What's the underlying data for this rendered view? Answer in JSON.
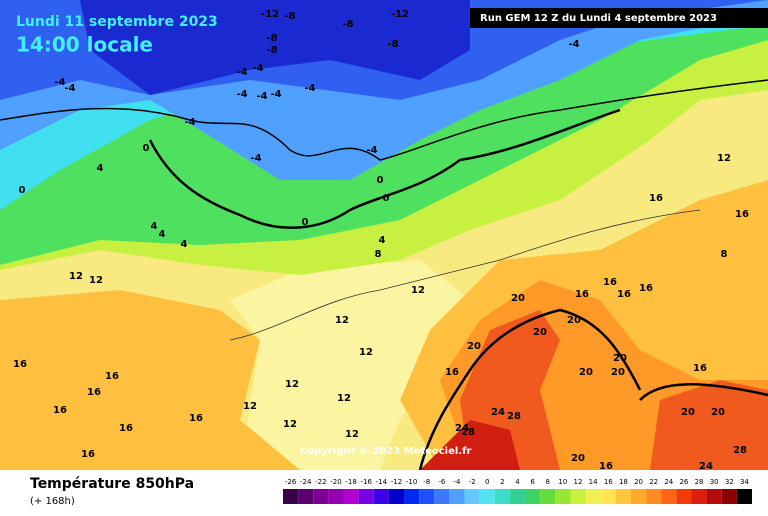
{
  "header": {
    "date": "Lundi 11 septembre 2023",
    "time": "14:00 locale",
    "run": "Run GEM 12 Z du Lundi 4 septembre 2023"
  },
  "footer": {
    "title": "Température 850hPa",
    "lead": "(+ 168h)",
    "copyright": "Copyright © 2023 Meteociel.fr"
  },
  "map": {
    "contour_labels": [
      "-12",
      "-8",
      "-12",
      "-8",
      "-8",
      "-8",
      "-8",
      "-4",
      "-4",
      "-4",
      "-4",
      "-4",
      "-4",
      "-4",
      "-4",
      "-4",
      "-4",
      "-4",
      "-4",
      "0",
      "4",
      "0",
      "0",
      "0",
      "0",
      "4",
      "4",
      "4",
      "4",
      "8",
      "12",
      "12",
      "12",
      "12",
      "12",
      "12",
      "16",
      "16",
      "8",
      "20",
      "16",
      "16",
      "16",
      "16",
      "20",
      "20",
      "20",
      "20",
      "16",
      "16",
      "16",
      "16",
      "16",
      "12",
      "12",
      "12",
      "12",
      "12",
      "20",
      "20",
      "16",
      "24",
      "28",
      "20",
      "20",
      "24",
      "28",
      "28",
      "24",
      "16",
      "20",
      "16",
      "16",
      "16"
    ]
  },
  "legend": {
    "values": [
      -26,
      -24,
      -22,
      -20,
      -18,
      -16,
      -14,
      -12,
      -10,
      -8,
      -6,
      -4,
      -2,
      0,
      2,
      4,
      6,
      8,
      10,
      12,
      14,
      16,
      18,
      20,
      22,
      24,
      26,
      28,
      30,
      32,
      34
    ],
    "colors": [
      "#3c0046",
      "#5a006e",
      "#7a0096",
      "#9600b4",
      "#b400d2",
      "#7800e6",
      "#3c00e6",
      "#0000c8",
      "#0028f0",
      "#1e50ff",
      "#3c78ff",
      "#50a0ff",
      "#64c8ff",
      "#50e6f0",
      "#3cdcc8",
      "#32d296",
      "#3cd264",
      "#64dc3c",
      "#96e632",
      "#c8f03c",
      "#f0f050",
      "#ffe650",
      "#ffc83c",
      "#ffaa28",
      "#ff8c1e",
      "#ff6414",
      "#f03c0a",
      "#dc1e0a",
      "#b40a0a",
      "#8c0000",
      "#000000"
    ]
  }
}
